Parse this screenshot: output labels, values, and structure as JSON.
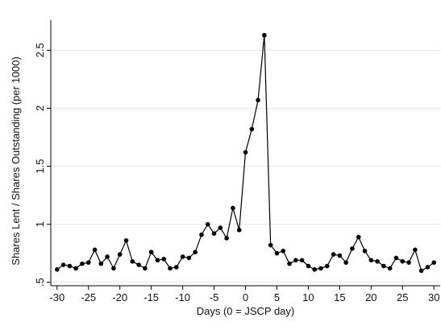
{
  "chart_data": {
    "type": "line",
    "xlabel": "Days (0 = JSCP day)",
    "ylabel": "Shares Lent / Shares Outstanding (per 1000)",
    "xlim": [
      -31,
      31
    ],
    "ylim": [
      0.47,
      2.76
    ],
    "x_ticks": [
      -30,
      -25,
      -20,
      -15,
      -10,
      -5,
      0,
      5,
      10,
      15,
      20,
      25,
      30
    ],
    "x_tick_labels": [
      "-30",
      "-25",
      "-20",
      "-15",
      "-10",
      "-5",
      "0",
      "5",
      "10",
      "15",
      "20",
      "25",
      "30"
    ],
    "y_ticks": [
      0.5,
      1,
      1.5,
      2,
      2.5
    ],
    "y_tick_labels": [
      ".5",
      "1",
      "1.5",
      "2",
      "2.5"
    ],
    "grid": "horizontal",
    "series_color": "#000000",
    "x": [
      -30,
      -29,
      -28,
      -27,
      -26,
      -25,
      -24,
      -23,
      -22,
      -21,
      -20,
      -19,
      -18,
      -17,
      -16,
      -15,
      -14,
      -13,
      -12,
      -11,
      -10,
      -9,
      -8,
      -7,
      -6,
      -5,
      -4,
      -3,
      -2,
      -1,
      0,
      1,
      2,
      3,
      4,
      5,
      6,
      7,
      8,
      9,
      10,
      11,
      12,
      13,
      14,
      15,
      16,
      17,
      18,
      19,
      20,
      21,
      22,
      23,
      24,
      25,
      26,
      27,
      28,
      29,
      30
    ],
    "y": [
      0.61,
      0.65,
      0.64,
      0.62,
      0.66,
      0.67,
      0.78,
      0.66,
      0.72,
      0.62,
      0.74,
      0.86,
      0.68,
      0.65,
      0.62,
      0.76,
      0.69,
      0.7,
      0.62,
      0.63,
      0.72,
      0.71,
      0.76,
      0.91,
      1.0,
      0.92,
      0.97,
      0.88,
      1.14,
      0.95,
      1.62,
      1.82,
      2.07,
      2.63,
      0.82,
      0.75,
      0.77,
      0.66,
      0.69,
      0.69,
      0.64,
      0.61,
      0.62,
      0.64,
      0.74,
      0.73,
      0.67,
      0.79,
      0.89,
      0.77,
      0.69,
      0.68,
      0.64,
      0.62,
      0.71,
      0.68,
      0.67,
      0.78,
      0.6,
      0.63,
      0.67
    ]
  }
}
